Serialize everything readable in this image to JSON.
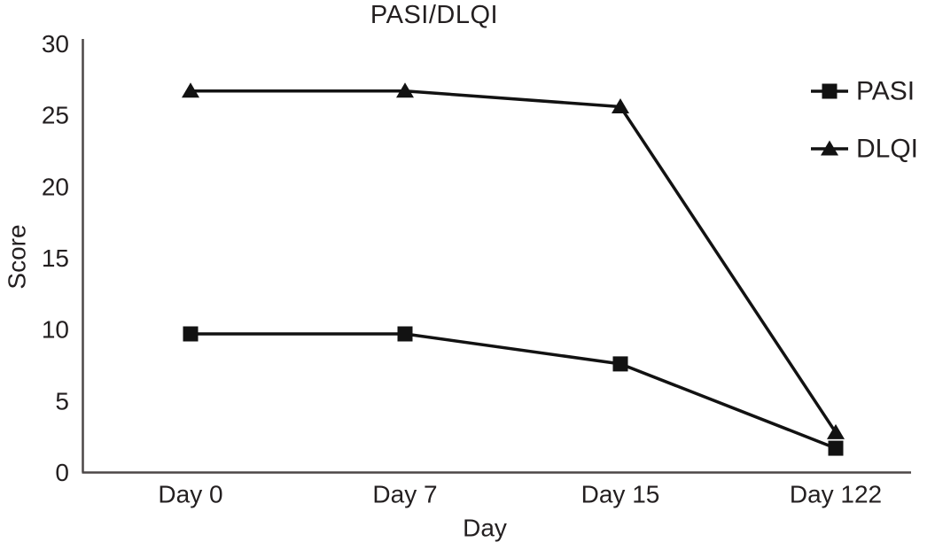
{
  "chart_data": {
    "type": "line",
    "title": "PASI/DLQI",
    "xlabel": "Day",
    "ylabel": "Score",
    "categories": [
      "Day 0",
      "Day 7",
      "Day 15",
      "Day 122"
    ],
    "series": [
      {
        "name": "PASI",
        "marker": "square",
        "values": [
          9.7,
          9.7,
          7.6,
          1.7
        ]
      },
      {
        "name": "DLQI",
        "marker": "triangle",
        "values": [
          26.7,
          26.7,
          25.6,
          2.8
        ]
      }
    ],
    "ylim": [
      0,
      30
    ],
    "yticks": [
      0,
      5,
      10,
      15,
      20,
      25,
      30
    ],
    "grid": false,
    "legend_position": "top-right",
    "legend": [
      {
        "label": "PASI",
        "icon": "square-marker-icon"
      },
      {
        "label": "DLQI",
        "icon": "triangle-marker-icon"
      }
    ],
    "colors": {
      "line": "#121212",
      "marker": "#121212",
      "text": "#231f20",
      "axis": "#4c4747",
      "background": "#ffffff"
    }
  }
}
